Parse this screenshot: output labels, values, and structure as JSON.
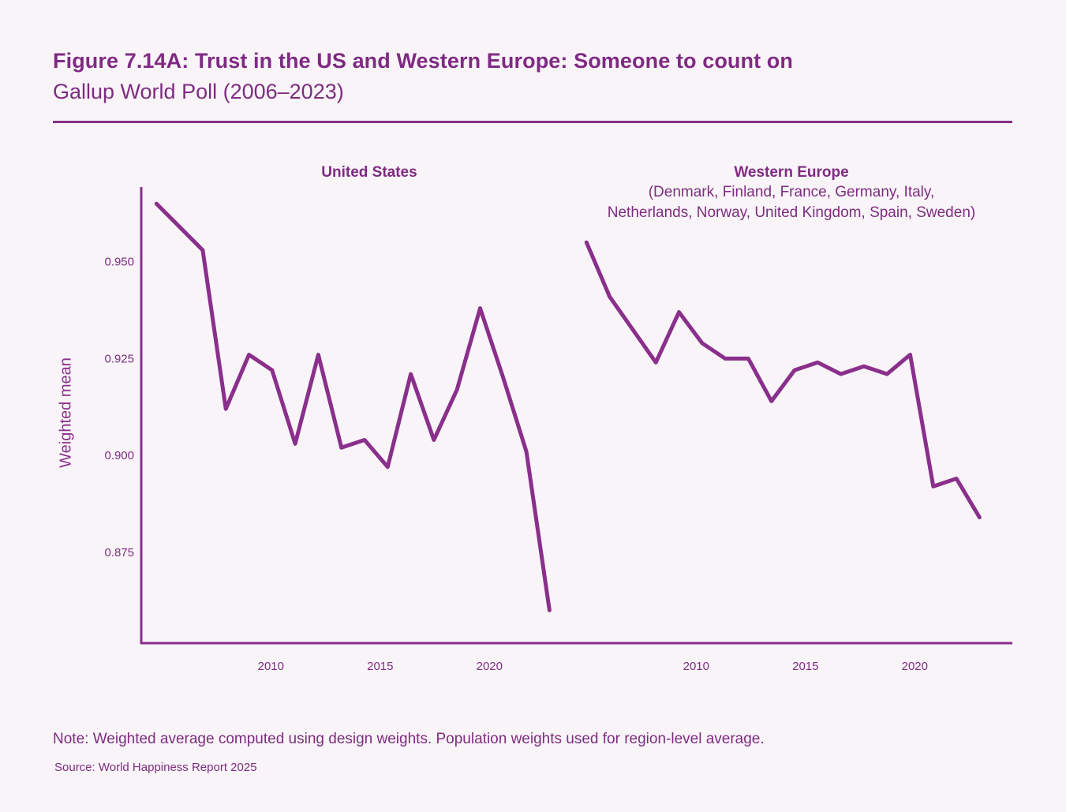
{
  "header": {
    "title": "Figure 7.14A: Trust in the US and Western Europe: Someone to count on",
    "subtitle": "Gallup World Poll (2006–2023)"
  },
  "footer": {
    "note": "Note: Weighted average computed using design weights. Population weights used for region-level average.",
    "source": "Source: World Happiness Report 2025"
  },
  "colors": {
    "line": "#8a2f8b",
    "text": "#7e2c80",
    "background": "#f8f4f8"
  },
  "chart_data": {
    "type": "line",
    "title": "Figure 7.14A: Trust in the US and Western Europe: Someone to count on",
    "subtitle": "Gallup World Poll (2006–2023)",
    "ylabel": "Weighted mean",
    "xlabel": "",
    "ylim": [
      0.855,
      0.97
    ],
    "yticks": [
      0.875,
      0.9,
      0.925,
      0.95
    ],
    "ytick_labels": [
      "0.875",
      "0.900",
      "0.925",
      "0.950"
    ],
    "xticks": [
      2010,
      2015,
      2020
    ],
    "xtick_labels": [
      "2010",
      "2015",
      "2020"
    ],
    "xlim": [
      2006,
      2023
    ],
    "grid": false,
    "legend": "none",
    "panels": [
      {
        "name": "United States",
        "title": "United States",
        "subtitle": "",
        "x": [
          2006,
          2008,
          2009,
          2010,
          2011,
          2012,
          2013,
          2014,
          2015,
          2016,
          2017,
          2018,
          2019,
          2020,
          2021,
          2022,
          2023
        ],
        "values": [
          0.965,
          0.953,
          0.912,
          0.926,
          0.922,
          0.903,
          0.926,
          0.902,
          0.904,
          0.897,
          0.921,
          0.904,
          0.917,
          0.938,
          0.92,
          0.901,
          0.86
        ]
      },
      {
        "name": "Western Europe",
        "title": "Western Europe",
        "subtitle_lines": [
          "(Denmark, Finland, France, Germany, Italy,",
          "Netherlands, Norway, United Kingdom, Spain, Sweden)"
        ],
        "x": [
          2006,
          2007,
          2009,
          2010,
          2011,
          2012,
          2013,
          2014,
          2015,
          2016,
          2017,
          2018,
          2019,
          2020,
          2021,
          2022,
          2023
        ],
        "values": [
          0.955,
          0.941,
          0.924,
          0.937,
          0.929,
          0.925,
          0.925,
          0.914,
          0.922,
          0.924,
          0.921,
          0.923,
          0.921,
          0.926,
          0.892,
          0.894,
          0.884
        ]
      }
    ]
  }
}
